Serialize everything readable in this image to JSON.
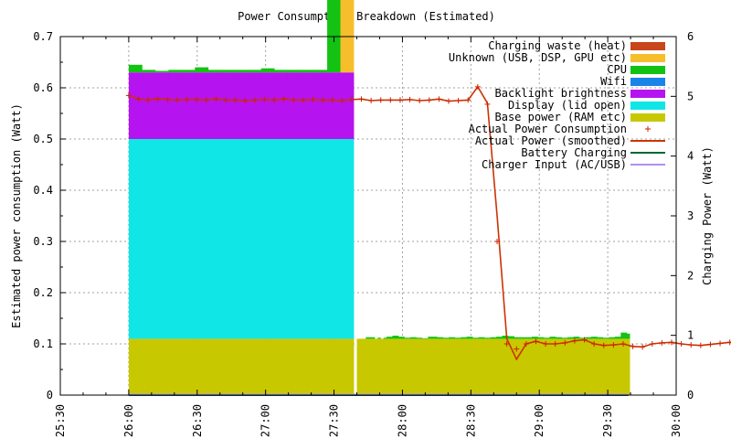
{
  "chart_data": {
    "type": "area",
    "title": "Power Consumption Breakdown (Estimated)",
    "xlabel": "",
    "ylabel": "Estimated power consumption (Watt)",
    "y2label": "Charging Power (Watt)",
    "xlim": [
      "25:30",
      "30:00"
    ],
    "ylim": [
      0,
      0.7
    ],
    "y2lim": [
      0,
      6
    ],
    "xticks": [
      "25:30",
      "26:00",
      "26:30",
      "27:00",
      "27:30",
      "28:00",
      "28:30",
      "29:00",
      "29:30",
      "30:00"
    ],
    "yticks": [
      "0",
      "0.1",
      "0.2",
      "0.3",
      "0.4",
      "0.5",
      "0.6",
      "0.7"
    ],
    "y2ticks": [
      "0",
      "1",
      "2",
      "3",
      "4",
      "5",
      "6"
    ],
    "grid": true,
    "legend_position": "top-right",
    "legend": [
      {
        "label": "Charging waste (heat)",
        "kind": "box",
        "color": "#c8461c"
      },
      {
        "label": "Unknown (USB, DSP, GPU etc)",
        "kind": "box",
        "color": "#f7be2c"
      },
      {
        "label": "CPU",
        "kind": "box",
        "color": "#13c213"
      },
      {
        "label": "Wifi",
        "kind": "box",
        "color": "#1b84e8"
      },
      {
        "label": "Backlight brightness",
        "kind": "box",
        "color": "#b513f0"
      },
      {
        "label": "Display (lid open)",
        "kind": "box",
        "color": "#11e6e6"
      },
      {
        "label": "Base power (RAM etc)",
        "kind": "box",
        "color": "#c8c800"
      },
      {
        "label": "Actual Power Consumption",
        "kind": "points",
        "color": "#cc2200"
      },
      {
        "label": "Actual Power (smoothed)",
        "kind": "line",
        "color": "#cc3300"
      },
      {
        "label": "Battery Charging",
        "kind": "line",
        "color": "#006633"
      },
      {
        "label": "Charger Input (AC/USB)",
        "kind": "line",
        "color": "#b08ff0"
      }
    ],
    "stacked_bars": {
      "interval_seconds": 10,
      "start": "26:00",
      "base": [
        0.11,
        0.11,
        0.11,
        0.11,
        0.11,
        0.11,
        0.11,
        0.11,
        0.11,
        0.11,
        0.11,
        0.11,
        0.11,
        0.11,
        0.11,
        0.11,
        0.11,
        0.11,
        0.11,
        0.11,
        0.11,
        0.11,
        0.11,
        0.11,
        0.11,
        0.11,
        0.11,
        0.11,
        0.11,
        0.11,
        0.11,
        0.11,
        0.11,
        0.11,
        0.11,
        0.11,
        0.11,
        0.11,
        0.11,
        0.11,
        0.11,
        0.11,
        0.11,
        0.11,
        0.11,
        0.11,
        0.11,
        0.11,
        0.11,
        0.11,
        0.11,
        0.11,
        0.11,
        0.11,
        0.11,
        0.11,
        0.11,
        0.11,
        0.11,
        0.11,
        0.11,
        0.11,
        0.11
      ],
      "display": [
        0.39,
        0.39,
        0.39,
        0.39,
        0.39,
        0.39,
        0.39,
        0.39,
        0.39,
        0.39,
        0.39,
        0.39,
        0.39,
        0.39,
        0.39,
        0.39,
        0.39,
        0.39,
        0.39,
        0.39,
        0.39,
        0.39,
        0.39,
        0.39,
        0.39,
        0.39,
        0.39,
        0.39,
        0.39,
        0.39,
        0.39,
        0.39,
        0.39,
        0.39,
        0.39,
        0.39,
        0.39,
        0.39,
        0.39,
        0.39,
        0.39,
        0.39,
        0.39,
        0.39,
        0.39,
        0.39,
        0.39,
        0.39,
        0.39,
        0.39,
        0.39,
        0.39,
        0.39,
        0.39,
        0.39,
        0.39,
        0.39,
        0.39,
        0.39,
        0.39,
        0.39,
        0.39,
        0.39
      ],
      "backlight": [
        0.13,
        0.13,
        0.13,
        0.13,
        0.13,
        0.13,
        0.13,
        0.13,
        0.13,
        0.13,
        0.13,
        0.13,
        0.13,
        0.13,
        0.13,
        0.13,
        0.13,
        0.13,
        0.13,
        0.13,
        0.13,
        0.13,
        0.13,
        0.13,
        0.13,
        0.13,
        0.13,
        0.13,
        0.13,
        0.13,
        0.13,
        0.13,
        0.13,
        0.13,
        0.13,
        0.13,
        0.13,
        0.13,
        0.13,
        0.13,
        0.13,
        0.13,
        0.13,
        0.13,
        0.13,
        0.13,
        0.13,
        0.13,
        0.13,
        0.13,
        0.13,
        0.13,
        0.13,
        0.13,
        0.13,
        0.13,
        0.13,
        0.13,
        0.13,
        0.13,
        0.13,
        0.13,
        0.13
      ],
      "wifi": [
        0,
        0,
        0,
        0,
        0,
        0,
        0,
        0,
        0,
        0,
        0,
        0,
        0,
        0,
        0,
        0,
        0,
        0,
        0,
        0,
        0,
        0,
        0,
        0,
        0,
        0,
        0,
        0,
        0,
        0,
        0,
        0,
        0,
        0,
        0,
        0,
        0,
        0,
        0,
        0,
        0,
        0,
        0,
        0,
        0,
        0,
        0,
        0,
        0,
        0,
        0,
        0,
        0,
        0,
        0,
        0,
        0,
        0,
        0,
        0,
        0,
        0,
        0
      ],
      "cpu": [
        0.015,
        0.005,
        0.003,
        0.005,
        0.005,
        0.01,
        0.005,
        0.005,
        0.005,
        0.005,
        0.008,
        0.005,
        0.005,
        0.005,
        0.005,
        0.21,
        0,
        0,
        0,
        0,
        0,
        0,
        0,
        0,
        0,
        0,
        0,
        0,
        0,
        0,
        0,
        0,
        0,
        0,
        0,
        0,
        0,
        0,
        0,
        0,
        0,
        0,
        0,
        0,
        0,
        0,
        0,
        0,
        0,
        0,
        0,
        0,
        0,
        0,
        0,
        0,
        0,
        0,
        0,
        0,
        0,
        0,
        0
      ],
      "unknown": [
        0,
        0,
        0,
        0,
        0,
        0,
        0,
        0,
        0,
        0,
        0,
        0,
        0,
        0,
        0,
        0.06,
        0.32,
        0,
        0,
        0,
        0,
        0,
        0,
        0,
        0,
        0,
        0,
        0,
        0,
        0,
        0,
        0,
        0,
        0,
        0,
        0,
        0,
        0,
        0,
        0,
        0,
        0,
        0,
        0,
        0,
        0,
        0,
        0,
        0,
        0,
        0,
        0,
        0,
        0,
        0,
        0,
        0,
        0,
        0,
        0,
        0,
        0,
        0
      ],
      "heat": [
        0,
        0,
        0,
        0,
        0,
        0,
        0,
        0,
        0,
        0,
        0,
        0,
        0,
        0,
        0,
        0,
        0,
        0,
        0,
        0,
        0,
        0,
        0,
        0,
        0,
        0,
        0,
        0,
        0,
        0,
        0,
        0,
        0,
        0,
        0,
        0,
        0,
        0,
        0,
        0,
        0,
        0,
        0,
        0,
        0,
        0,
        0,
        0,
        0,
        0,
        0,
        0,
        0,
        0,
        0,
        0,
        0,
        0,
        0,
        0,
        0,
        0,
        0
      ]
    },
    "tail_bars": {
      "interval_seconds": 10,
      "start": "27:40",
      "base": [
        0.11,
        0.11,
        0.11,
        0.11,
        0.11,
        0.11,
        0.11,
        0.11,
        0.11,
        0.11,
        0.11,
        0.11,
        0.11,
        0.11,
        0.11,
        0.11,
        0.11,
        0.11,
        0.11,
        0.11,
        0.11,
        0.11,
        0.11,
        0.11,
        0.11,
        0.11,
        0.11,
        0.11,
        0.11,
        0.11,
        0.11,
        0.11,
        0.11,
        0.11,
        0.11,
        0.11,
        0.11,
        0.11,
        0.11,
        0.11,
        0.11,
        0.11,
        0.11,
        0.11,
        0.11,
        0.11,
        0.11,
        0.11,
        0.11,
        0.11,
        0.11,
        0.11,
        0.11,
        0.11,
        0.11,
        0.11,
        0.11,
        0.11,
        0.11,
        0.11,
        0.11,
        0.11,
        0.11,
        0.11,
        0.11,
        0.11,
        0.11,
        0.11,
        0.11,
        0.11,
        0.11,
        0.11,
        0.11,
        0.11,
        0.11,
        0.11,
        0.11,
        0.11,
        0.11,
        0.11,
        0.11,
        0.11,
        0.11,
        0.11,
        0.11,
        0.11,
        0.11,
        0.11,
        0.11,
        0.11,
        0.11,
        0.11
      ],
      "cpu": [
        0,
        0,
        0,
        0.003,
        0.003,
        0.003,
        0,
        0.002,
        0,
        0.002,
        0.004,
        0.004,
        0.006,
        0.006,
        0.004,
        0.004,
        0.002,
        0.002,
        0.003,
        0.003,
        0.002,
        0.002,
        0.001,
        0.001,
        0.004,
        0.004,
        0.004,
        0.003,
        0.003,
        0.002,
        0.002,
        0.003,
        0.003,
        0.002,
        0.002,
        0.003,
        0.003,
        0.004,
        0.004,
        0.002,
        0.002,
        0.003,
        0.003,
        0.002,
        0.002,
        0.003,
        0.003,
        0.004,
        0.004,
        0.006,
        0.006,
        0.005,
        0.005,
        0.003,
        0.003,
        0.003,
        0.003,
        0.003,
        0.003,
        0.004,
        0.004,
        0.003,
        0.003,
        0.002,
        0.002,
        0.004,
        0.004,
        0.003,
        0.003,
        0.002,
        0.002,
        0.003,
        0.003,
        0.004,
        0.004,
        0.002,
        0.002,
        0.003,
        0.003,
        0.004,
        0.004,
        0.003,
        0.003,
        0.002,
        0.002,
        0.003,
        0.003,
        0.004,
        0.004,
        0.012,
        0.012,
        0.01
      ]
    },
    "actual_points": {
      "x_seconds_from_2600": [
        0,
        5,
        10,
        15,
        20,
        25,
        30,
        35,
        40,
        45,
        50,
        55,
        60,
        65,
        70,
        75,
        80,
        85,
        90,
        95,
        100,
        105,
        110,
        115,
        120,
        125,
        130,
        135,
        140,
        145,
        150,
        155,
        160,
        165,
        170,
        175,
        180,
        185,
        190,
        195,
        200,
        205,
        210,
        215,
        220,
        225,
        230,
        235,
        240,
        245,
        250,
        255,
        260,
        265,
        270,
        275,
        280,
        285,
        290,
        295,
        300,
        305,
        310,
        315,
        320,
        325,
        330,
        335,
        340,
        345,
        350,
        355,
        360,
        365,
        370,
        375,
        380,
        385,
        390,
        395,
        400,
        405,
        410,
        415,
        420,
        425
      ],
      "y": [
        0.585,
        0.578,
        0.576,
        0.578,
        0.577,
        0.576,
        0.577,
        0.577,
        0.576,
        0.578,
        0.576,
        0.576,
        0.575,
        0.576,
        0.577,
        0.576,
        0.578,
        0.576,
        0.576,
        0.577,
        0.576,
        0.576,
        0.575,
        0.577,
        0.578,
        0.575,
        0.576,
        0.576,
        0.576,
        0.577,
        0.575,
        0.576,
        0.578,
        0.574,
        0.575,
        0.576,
        0.602,
        0.568,
        0.3,
        0.1,
        0.09,
        0.1,
        0.105,
        0.1,
        0.1,
        0.102,
        0.106,
        0.108,
        0.1,
        0.097,
        0.098,
        0.1,
        0.095,
        0.094,
        0.1,
        0.102,
        0.103,
        0.1,
        0.098,
        0.097,
        0.099,
        0.101,
        0.103,
        0.1,
        0.1,
        0.097,
        0.101,
        0.1,
        0.1,
        0.099,
        0.101,
        0.1,
        0.102,
        0.1,
        0.1,
        0.098,
        0.099,
        0.1,
        0.1,
        0.1,
        0.1,
        0.099,
        0.101,
        0.1,
        0.1,
        0.1
      ],
      "smoothed": [
        0.585,
        0.578,
        0.576,
        0.578,
        0.577,
        0.576,
        0.577,
        0.577,
        0.576,
        0.578,
        0.576,
        0.576,
        0.575,
        0.576,
        0.577,
        0.576,
        0.578,
        0.576,
        0.576,
        0.577,
        0.576,
        0.576,
        0.575,
        0.577,
        0.578,
        0.575,
        0.576,
        0.576,
        0.576,
        0.577,
        0.575,
        0.576,
        0.578,
        0.574,
        0.575,
        0.576,
        0.602,
        0.57,
        0.35,
        0.11,
        0.07,
        0.1,
        0.105,
        0.1,
        0.1,
        0.102,
        0.106,
        0.108,
        0.1,
        0.097,
        0.098,
        0.1,
        0.095,
        0.094,
        0.1,
        0.102,
        0.103,
        0.1,
        0.098,
        0.097,
        0.099,
        0.101,
        0.103,
        0.1,
        0.1,
        0.097,
        0.101,
        0.1,
        0.1,
        0.099,
        0.101,
        0.1,
        0.102,
        0.1,
        0.1,
        0.098,
        0.099,
        0.1,
        0.1,
        0.1,
        0.1,
        0.099,
        0.101,
        0.1,
        0.1,
        0.1
      ]
    },
    "battery_charging": [
      0
    ],
    "charger_input": [
      0
    ]
  }
}
